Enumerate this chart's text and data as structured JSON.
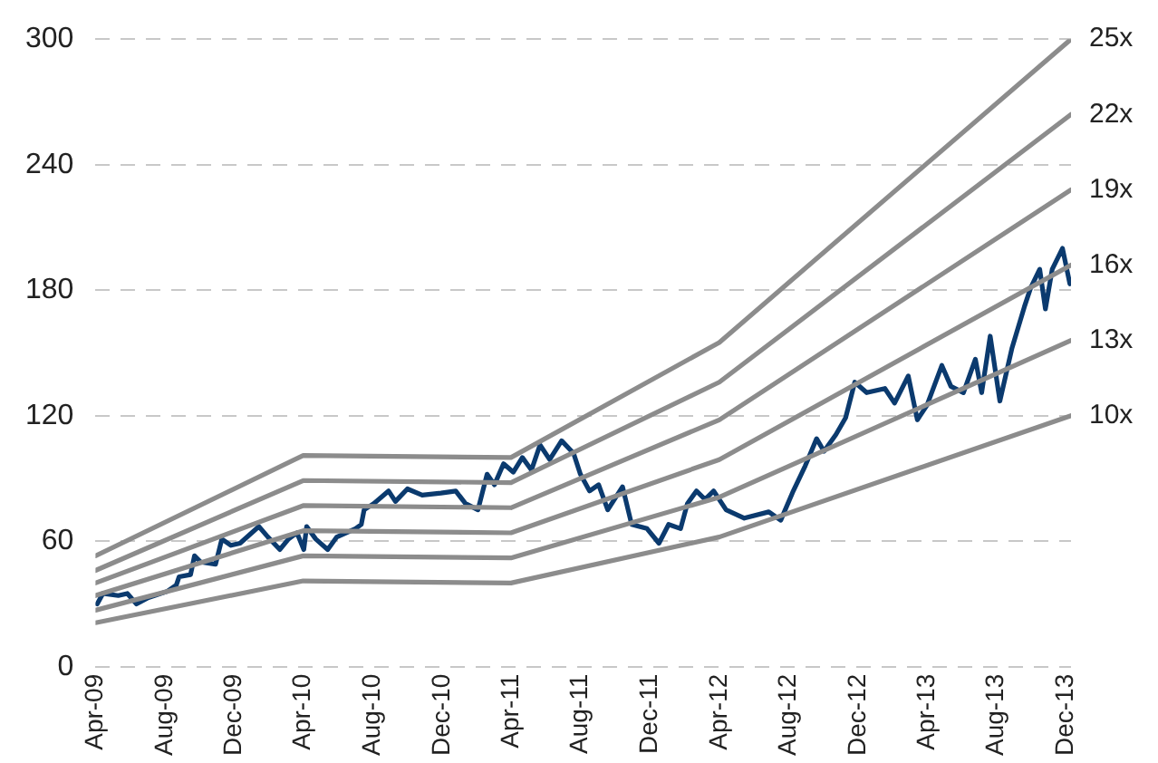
{
  "chart_data": {
    "type": "line",
    "xlim": [
      "2009-04-01",
      "2013-12-10"
    ],
    "ylim": [
      0,
      300
    ],
    "xticks": [
      {
        "value": "2009-04-01",
        "label": "Apr-09"
      },
      {
        "value": "2009-08-01",
        "label": "Aug-09"
      },
      {
        "value": "2009-12-01",
        "label": "Dec-09"
      },
      {
        "value": "2010-04-01",
        "label": "Apr-10"
      },
      {
        "value": "2010-08-01",
        "label": "Aug-10"
      },
      {
        "value": "2010-12-01",
        "label": "Dec-10"
      },
      {
        "value": "2011-04-01",
        "label": "Apr-11"
      },
      {
        "value": "2011-08-01",
        "label": "Aug-11"
      },
      {
        "value": "2011-12-01",
        "label": "Dec-11"
      },
      {
        "value": "2012-04-01",
        "label": "Apr-12"
      },
      {
        "value": "2012-08-01",
        "label": "Aug-12"
      },
      {
        "value": "2012-12-01",
        "label": "Dec-12"
      },
      {
        "value": "2013-04-01",
        "label": "Apr-13"
      },
      {
        "value": "2013-08-01",
        "label": "Aug-13"
      },
      {
        "value": "2013-12-01",
        "label": "Dec-13"
      }
    ],
    "yticks": [
      0,
      60,
      120,
      180,
      240,
      300
    ],
    "grid": "y",
    "legend": false,
    "marker": "none",
    "line_style": "solid",
    "series": [
      {
        "name": "25x",
        "color": "#8c8c8c",
        "x": [
          "2009-04-01",
          "2010-04-01",
          "2011-04-01",
          "2012-04-01",
          "2013-12-10"
        ],
        "values": [
          53,
          101,
          100,
          155,
          300
        ]
      },
      {
        "name": "22x",
        "color": "#8c8c8c",
        "x": [
          "2009-04-01",
          "2010-04-01",
          "2011-04-01",
          "2012-04-01",
          "2013-12-10"
        ],
        "values": [
          46,
          89,
          88,
          136,
          264
        ]
      },
      {
        "name": "19x",
        "color": "#8c8c8c",
        "x": [
          "2009-04-01",
          "2010-04-01",
          "2011-04-01",
          "2012-04-01",
          "2013-12-10"
        ],
        "values": [
          40,
          77,
          76,
          118,
          228
        ]
      },
      {
        "name": "16x",
        "color": "#8c8c8c",
        "x": [
          "2009-04-01",
          "2010-04-01",
          "2011-04-01",
          "2012-04-01",
          "2013-12-10"
        ],
        "values": [
          34,
          65,
          64,
          99,
          192
        ]
      },
      {
        "name": "13x",
        "color": "#8c8c8c",
        "x": [
          "2009-04-01",
          "2010-04-01",
          "2011-04-01",
          "2012-04-01",
          "2013-12-10"
        ],
        "values": [
          27,
          53,
          52,
          81,
          156
        ]
      },
      {
        "name": "10x",
        "color": "#8c8c8c",
        "x": [
          "2009-04-01",
          "2010-04-01",
          "2011-04-01",
          "2012-04-01",
          "2013-12-10"
        ],
        "values": [
          21,
          41,
          40,
          62,
          120
        ]
      },
      {
        "color": "#0b3a6e",
        "x": [
          "2009-04-04",
          "2009-04-14",
          "2009-05-11",
          "2009-05-27",
          "2009-06-12",
          "2009-07-03",
          "2009-08-05",
          "2009-08-21",
          "2009-08-26",
          "2009-09-15",
          "2009-09-22",
          "2009-10-03",
          "2009-10-29",
          "2009-11-09",
          "2009-11-25",
          "2009-12-11",
          "2010-01-13",
          "2010-01-29",
          "2010-02-19",
          "2010-03-06",
          "2010-03-21",
          "2010-04-02",
          "2010-04-07",
          "2010-04-23",
          "2010-05-14",
          "2010-05-30",
          "2010-07-02",
          "2010-07-12",
          "2010-07-17",
          "2010-08-03",
          "2010-08-29",
          "2010-09-10",
          "2010-10-01",
          "2010-10-27",
          "2010-11-29",
          "2010-12-25",
          "2011-01-11",
          "2011-02-02",
          "2011-02-18",
          "2011-03-03",
          "2011-03-19",
          "2011-04-05",
          "2011-04-21",
          "2011-05-07",
          "2011-05-22",
          "2011-06-08",
          "2011-06-29",
          "2011-07-20",
          "2011-08-01",
          "2011-08-17",
          "2011-09-02",
          "2011-09-18",
          "2011-10-14",
          "2011-10-30",
          "2011-11-26",
          "2011-12-17",
          "2012-01-03",
          "2012-01-24",
          "2012-02-05",
          "2012-02-21",
          "2012-03-07",
          "2012-03-22",
          "2012-04-13",
          "2012-05-15",
          "2012-06-27",
          "2012-07-18",
          "2012-08-09",
          "2012-08-30",
          "2012-09-19",
          "2012-10-02",
          "2012-10-23",
          "2012-11-09",
          "2012-11-25",
          "2012-12-16",
          "2013-01-17",
          "2013-02-03",
          "2013-02-27",
          "2013-03-15",
          "2013-04-01",
          "2013-04-27",
          "2013-05-13",
          "2013-06-04",
          "2013-06-25",
          "2013-07-06",
          "2013-07-21",
          "2013-08-07",
          "2013-08-28",
          "2013-09-19",
          "2013-09-30",
          "2013-10-16",
          "2013-10-26",
          "2013-11-07",
          "2013-11-25",
          "2013-12-08"
        ],
        "values": [
          30,
          35,
          34,
          35,
          30,
          33,
          36,
          39,
          43,
          44,
          53,
          50,
          49,
          61,
          58,
          59,
          67,
          62,
          56,
          61,
          64,
          56,
          67,
          61,
          56,
          62,
          66,
          68,
          75,
          78,
          84,
          79,
          85,
          82,
          83,
          84,
          78,
          75,
          92,
          87,
          97,
          93,
          100,
          94,
          106,
          99,
          108,
          102,
          92,
          84,
          87,
          75,
          86,
          68,
          66,
          59,
          68,
          66,
          78,
          84,
          80,
          84,
          75,
          71,
          74,
          70,
          84,
          96,
          109,
          103,
          111,
          119,
          136,
          131,
          133,
          126,
          139,
          118,
          125,
          144,
          134,
          131,
          147,
          131,
          158,
          127,
          152,
          172,
          181,
          190,
          171,
          190,
          200,
          183
        ]
      }
    ]
  }
}
